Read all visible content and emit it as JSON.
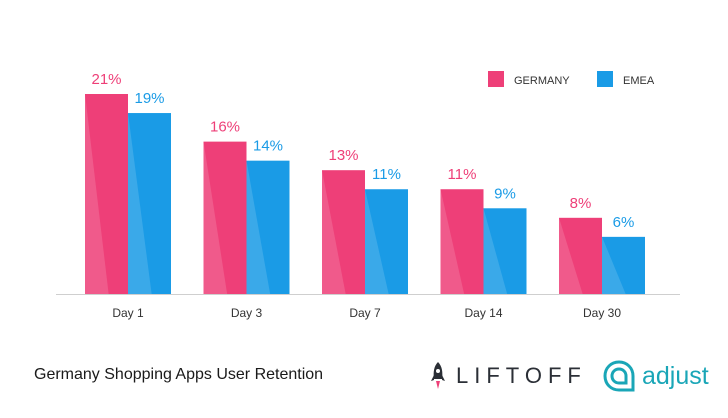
{
  "chart_data": {
    "type": "bar",
    "title": "Germany Shopping Apps User Retention",
    "categories": [
      "Day 1",
      "Day 3",
      "Day 7",
      "Day 14",
      "Day 30"
    ],
    "series": [
      {
        "name": "GERMANY",
        "values": [
          21,
          16,
          13,
          11,
          8
        ],
        "labels": [
          "21%",
          "16%",
          "13%",
          "11%",
          "8%"
        ]
      },
      {
        "name": "EMEA",
        "values": [
          19,
          14,
          11,
          9,
          6
        ],
        "labels": [
          "19%",
          "14%",
          "11%",
          "9%",
          "6%"
        ]
      }
    ],
    "ylim": [
      0,
      21
    ],
    "xlabel": "",
    "ylabel": "",
    "legend": "top-right",
    "grid": false
  },
  "colors": {
    "germany": "#ee3f78",
    "emea": "#1a9be6",
    "axis": "#cfcfcf",
    "tick_text": "#333333"
  },
  "footer": {
    "title": "Germany Shopping Apps User Retention",
    "liftoff_logo": "LIFTOFF",
    "adjust_logo": "adjust"
  }
}
